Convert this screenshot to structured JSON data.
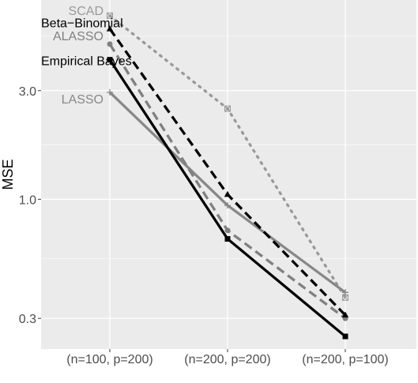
{
  "chart_data": {
    "type": "line",
    "title": "",
    "xlabel": "",
    "ylabel": "MSE",
    "y_scale": "log",
    "ylim": [
      0.22,
      7.5
    ],
    "y_ticks": [
      0.3,
      1.0,
      3.0
    ],
    "y_tick_labels": [
      "0.3",
      "1.0",
      "3.0"
    ],
    "grid": true,
    "legend": "direct labels at left of first point",
    "categories": [
      "(n=100, p=200)",
      "(n=200, p=200)",
      "(n=200, p=100)"
    ],
    "series": [
      {
        "name": "SCAD",
        "values": [
          6.4,
          2.5,
          0.37
        ],
        "color": "#999999",
        "dash": "dotted",
        "marker": "square-cross"
      },
      {
        "name": "Beta−Binomial",
        "values": [
          5.6,
          1.05,
          0.31
        ],
        "color": "#000000",
        "dash": "dashed",
        "marker": "triangle"
      },
      {
        "name": "ALASSO",
        "values": [
          4.8,
          0.73,
          0.3
        ],
        "color": "#808080",
        "dash": "dashed",
        "marker": "circle"
      },
      {
        "name": "Empirical Bayes",
        "values": [
          4.1,
          0.67,
          0.25
        ],
        "color": "#000000",
        "dash": "solid",
        "marker": "square"
      },
      {
        "name": "LASSO",
        "values": [
          2.95,
          0.94,
          0.39
        ],
        "color": "#888888",
        "dash": "solid",
        "marker": "plus"
      }
    ]
  }
}
